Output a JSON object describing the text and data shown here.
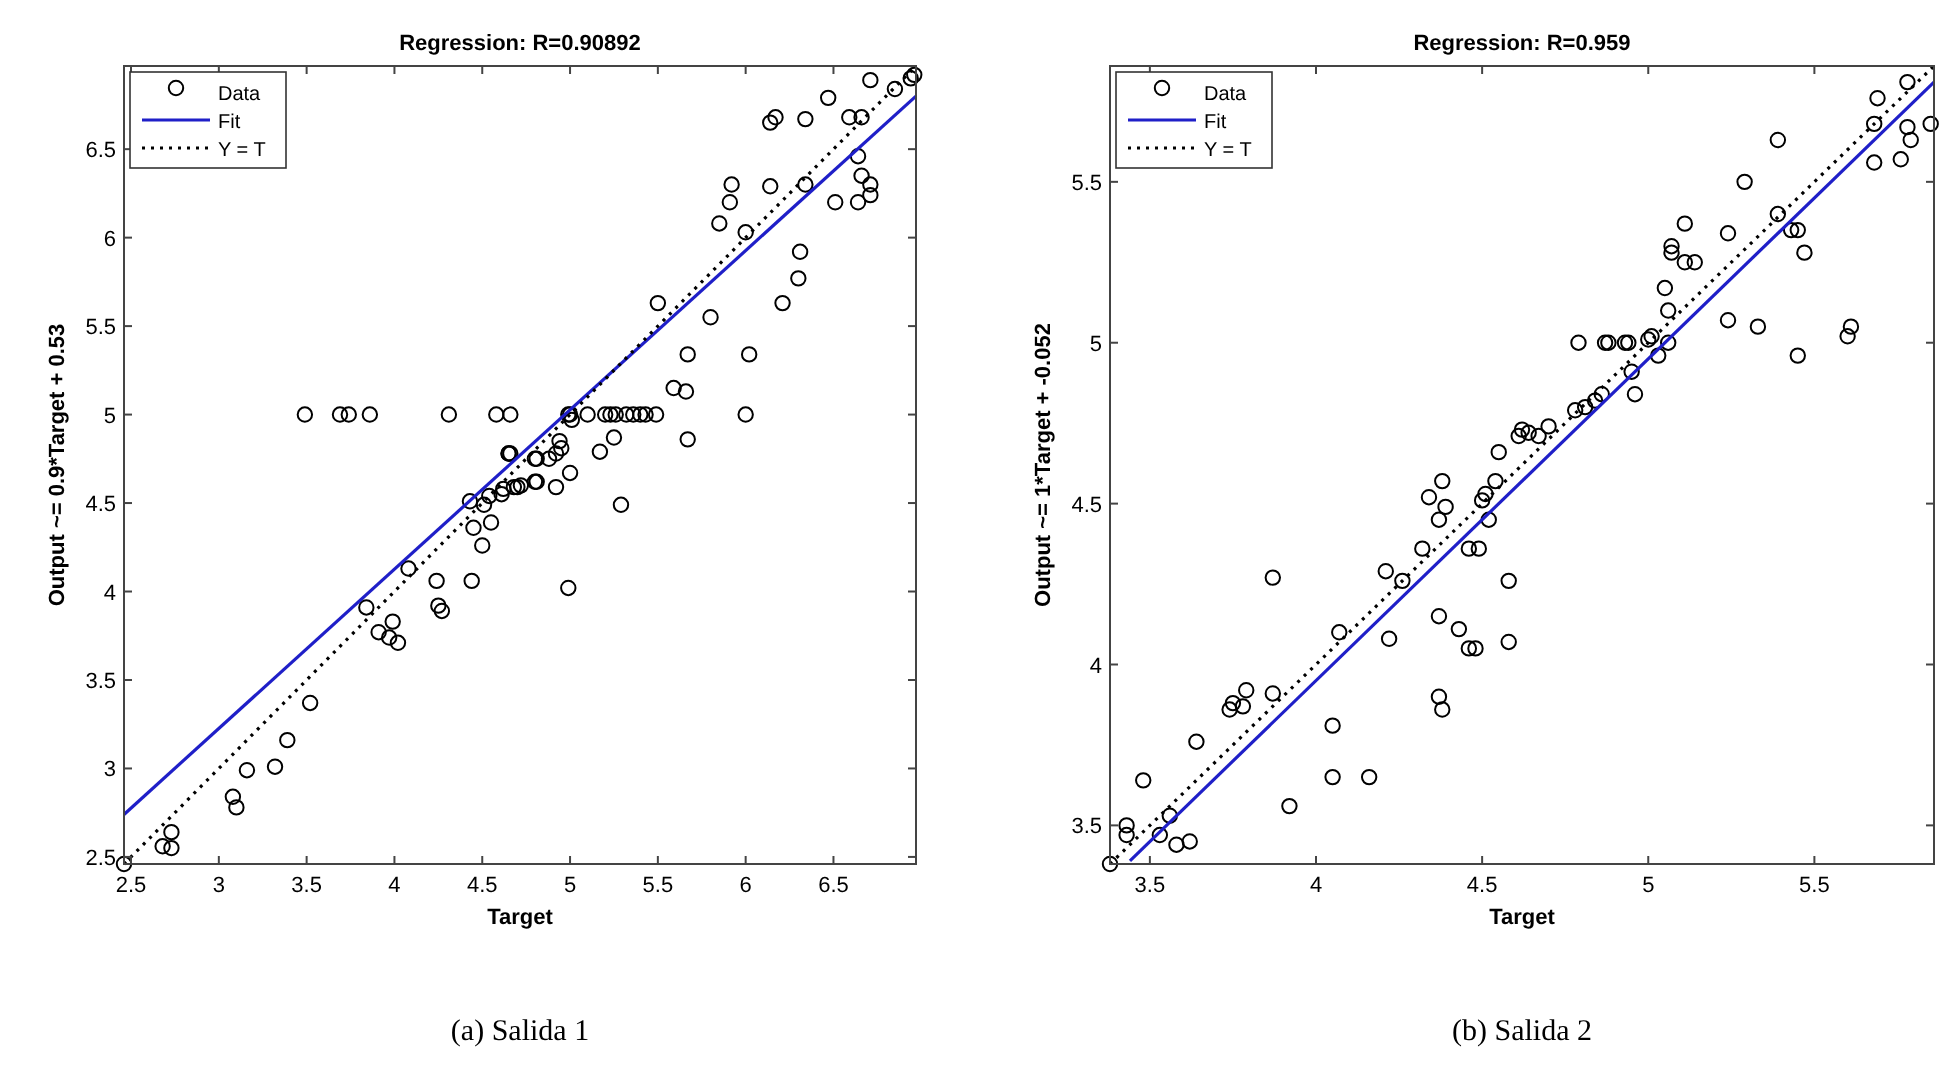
{
  "chart_data": [
    {
      "type": "scatter",
      "title": "Regression: R=0.90892",
      "xlabel": "Target",
      "ylabel": "Output ~= 0.9*Target + 0.53",
      "annotations": [
        "(a) Salida 1"
      ],
      "legend": "top left",
      "xlim": [
        2.46,
        6.97
      ],
      "ylim": [
        2.46,
        6.97
      ],
      "xticks": [
        2.5,
        3,
        3.5,
        4,
        4.5,
        5,
        5.5,
        6,
        6.5
      ],
      "yticks": [
        2.5,
        3,
        3.5,
        4,
        4.5,
        5,
        5.5,
        6,
        6.5
      ],
      "series": [
        {
          "name": "Data",
          "marker": "circle",
          "color": "#000000",
          "x": [
            2.46,
            2.68,
            2.73,
            2.73,
            3.08,
            3.1,
            3.16,
            3.32,
            3.39,
            3.52,
            3.84,
            3.91,
            3.97,
            3.99,
            4.02,
            4.08,
            4.24,
            4.25,
            4.27,
            4.44,
            4.45,
            4.5,
            4.55,
            4.43,
            4.51,
            4.54,
            4.61,
            4.66,
            4.68,
            4.72,
            4.81,
            4.81,
            3.49,
            3.69,
            3.74,
            3.86,
            4.31,
            4.58,
            4.66,
            4.65,
            4.99,
            5.0,
            5.1,
            5.2,
            5.23,
            5.26,
            5.32,
            5.36,
            5.4,
            5.43,
            5.49,
            6.0,
            4.65,
            4.62,
            4.7,
            4.8,
            4.8,
            4.88,
            4.92,
            4.94,
            4.95,
            4.92,
            5.0,
            5.01,
            4.99,
            5.17,
            5.25,
            5.29,
            5.5,
            5.59,
            5.66,
            5.67,
            5.67,
            5.8,
            5.85,
            5.91,
            5.92,
            6.0,
            6.02,
            6.14,
            6.14,
            6.17,
            6.21,
            6.3,
            6.31,
            6.34,
            6.34,
            6.47,
            6.51,
            6.59,
            6.64,
            6.64,
            6.66,
            6.66,
            6.71,
            6.71,
            6.71,
            6.85,
            6.94,
            6.96
          ],
          "values": [
            2.46,
            2.56,
            2.55,
            2.64,
            2.84,
            2.78,
            2.99,
            3.01,
            3.16,
            3.37,
            3.91,
            3.77,
            3.74,
            3.83,
            3.71,
            4.13,
            4.06,
            3.92,
            3.89,
            4.06,
            4.36,
            4.26,
            4.39,
            4.51,
            4.49,
            4.54,
            4.55,
            4.78,
            4.59,
            4.6,
            4.62,
            4.75,
            5,
            5,
            5,
            5,
            5,
            5,
            5,
            4.78,
            5,
            5,
            5,
            5,
            5,
            5,
            5,
            5,
            5,
            5,
            5,
            5,
            4.78,
            4.58,
            4.59,
            4.62,
            4.75,
            4.75,
            4.78,
            4.85,
            4.81,
            4.59,
            4.67,
            4.97,
            4.02,
            4.79,
            4.87,
            4.49,
            5.63,
            5.15,
            5.13,
            5.34,
            4.86,
            5.55,
            6.08,
            6.2,
            6.3,
            6.03,
            5.34,
            6.29,
            6.65,
            6.68,
            5.63,
            5.77,
            5.92,
            6.3,
            6.67,
            6.79,
            6.2,
            6.68,
            6.2,
            6.46,
            6.68,
            6.35,
            6.3,
            6.24,
            6.89,
            6.84,
            6.9,
            6.92
          ]
        },
        {
          "name": "Fit",
          "type": "line",
          "line_style": "solid",
          "color": "#1f1fc8",
          "x": [
            2.46,
            6.97
          ],
          "values": [
            2.74,
            6.8
          ]
        },
        {
          "name": "Y = T",
          "type": "line",
          "line_style": "dotted",
          "color": "#000000",
          "x": [
            2.46,
            6.97
          ],
          "values": [
            2.46,
            6.97
          ]
        }
      ]
    },
    {
      "type": "scatter",
      "title": "Regression: R=0.959",
      "xlabel": "Target",
      "ylabel": "Output ~= 1*Target + -0.052",
      "annotations": [
        "(b) Salida 2"
      ],
      "legend": "top left",
      "xlim": [
        3.38,
        5.86
      ],
      "ylim": [
        3.38,
        5.86
      ],
      "xticks": [
        3.5,
        4,
        4.5,
        5,
        5.5
      ],
      "yticks": [
        3.5,
        4,
        4.5,
        5,
        5.5
      ],
      "series": [
        {
          "name": "Data",
          "marker": "circle",
          "color": "#000000",
          "x": [
            3.38,
            3.43,
            3.43,
            3.48,
            3.53,
            3.56,
            3.58,
            3.62,
            3.64,
            3.74,
            3.75,
            3.78,
            3.79,
            3.87,
            3.87,
            3.92,
            4.05,
            4.05,
            4.07,
            4.16,
            4.21,
            4.22,
            4.26,
            4.37,
            4.38,
            4.37,
            4.39,
            4.43,
            4.49,
            4.5,
            4.52,
            4.54,
            4.32,
            4.34,
            4.37,
            4.38,
            4.46,
            4.46,
            4.48,
            4.51,
            4.55,
            4.58,
            4.58,
            4.61,
            4.62,
            4.64,
            4.67,
            4.7,
            4.78,
            4.81,
            4.84,
            4.86,
            4.79,
            4.87,
            4.88,
            4.93,
            4.94,
            4.95,
            4.96,
            5.0,
            5.01,
            5.03,
            5.06,
            5.05,
            5.06,
            5.07,
            5.07,
            5.11,
            5.11,
            5.14,
            5.24,
            5.24,
            5.29,
            5.33,
            5.39,
            5.39,
            5.43,
            5.45,
            5.45,
            5.47,
            5.6,
            5.61,
            5.68,
            5.68,
            5.69,
            5.76,
            5.78,
            5.78,
            5.79,
            5.85
          ],
          "values": [
            3.38,
            3.5,
            3.47,
            3.64,
            3.47,
            3.53,
            3.44,
            3.45,
            3.76,
            3.86,
            3.88,
            3.87,
            3.92,
            3.91,
            4.27,
            3.56,
            3.81,
            3.65,
            4.1,
            3.65,
            4.29,
            4.08,
            4.26,
            3.9,
            3.86,
            4.15,
            4.49,
            4.11,
            4.36,
            4.51,
            4.45,
            4.57,
            4.36,
            4.52,
            4.45,
            4.57,
            4.36,
            4.05,
            4.05,
            4.53,
            4.66,
            4.26,
            4.07,
            4.71,
            4.73,
            4.72,
            4.71,
            4.74,
            4.79,
            4.8,
            4.82,
            4.84,
            5,
            5,
            5,
            5,
            5,
            4.91,
            4.84,
            5.01,
            5.02,
            4.96,
            5,
            5.17,
            5.1,
            5.28,
            5.3,
            5.37,
            5.25,
            5.25,
            5.34,
            5.07,
            5.5,
            5.05,
            5.63,
            5.4,
            5.35,
            5.35,
            4.96,
            5.28,
            5.02,
            5.05,
            5.68,
            5.56,
            5.76,
            5.57,
            5.81,
            5.67,
            5.63,
            5.68
          ]
        },
        {
          "name": "Fit",
          "type": "line",
          "line_style": "solid",
          "color": "#1f1fc8",
          "x": [
            3.44,
            5.86
          ],
          "values": [
            3.39,
            5.81
          ]
        },
        {
          "name": "Y = T",
          "type": "line",
          "line_style": "dotted",
          "color": "#000000",
          "x": [
            3.38,
            5.86
          ],
          "values": [
            3.38,
            5.86
          ]
        }
      ]
    }
  ]
}
